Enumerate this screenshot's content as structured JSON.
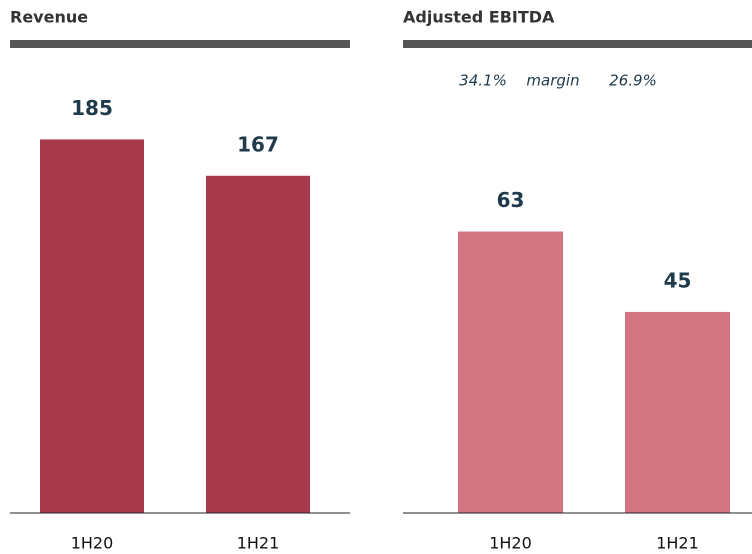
{
  "chart_data": [
    {
      "type": "bar",
      "title": "Revenue",
      "categories": [
        "1H20",
        "1H21"
      ],
      "values": [
        185,
        167
      ],
      "color": "#a63a4c",
      "ylim": [
        0,
        208
      ]
    },
    {
      "type": "bar",
      "title": "Adjusted EBITDA",
      "annotations": [
        "34.1%",
        "margin",
        "26.9%"
      ],
      "categories": [
        "1H20",
        "1H21"
      ],
      "values": [
        63,
        45
      ],
      "color": "#d27482",
      "ylim": [
        0,
        94
      ]
    }
  ]
}
